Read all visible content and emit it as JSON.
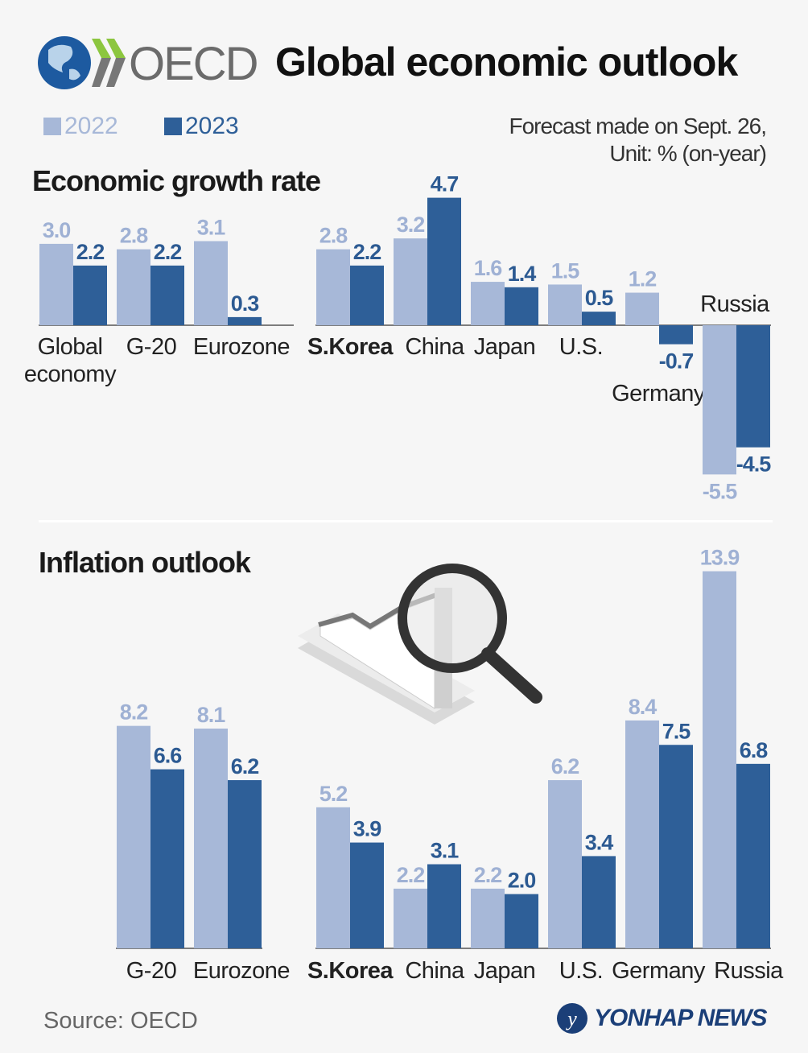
{
  "header": {
    "logo_text": "OECD",
    "title": "Global economic outlook"
  },
  "legend": [
    {
      "label": "2022",
      "color": "#a7b8d8"
    },
    {
      "label": "2023",
      "color": "#2e5f98"
    }
  ],
  "note": {
    "line1": "Forecast made on Sept. 26,",
    "line2": "Unit: % (on-year)"
  },
  "footer": {
    "source": "Source: OECD",
    "brand": "YONHAP NEWS"
  },
  "chart_data": [
    {
      "type": "bar",
      "title": "Economic growth rate",
      "categories": [
        "Global economy",
        "G-20",
        "Eurozone",
        "S.Korea",
        "China",
        "Japan",
        "U.S.",
        "Germany",
        "Russia"
      ],
      "series": [
        {
          "name": "2022",
          "values": [
            3.0,
            2.8,
            3.1,
            2.8,
            3.2,
            1.6,
            1.5,
            1.2,
            -5.5
          ]
        },
        {
          "name": "2023",
          "values": [
            2.2,
            2.2,
            0.3,
            2.2,
            4.7,
            1.4,
            0.5,
            -0.7,
            -4.5
          ]
        }
      ]
    },
    {
      "type": "bar",
      "title": "Inflation outlook",
      "categories": [
        "G-20",
        "Eurozone",
        "S.Korea",
        "China",
        "Japan",
        "U.S.",
        "Germany",
        "Russia"
      ],
      "series": [
        {
          "name": "2022",
          "values": [
            8.2,
            8.1,
            5.2,
            2.2,
            2.2,
            6.2,
            8.4,
            13.9
          ]
        },
        {
          "name": "2023",
          "values": [
            6.6,
            6.2,
            3.9,
            3.1,
            2.0,
            3.4,
            7.5,
            6.8
          ]
        }
      ]
    }
  ]
}
